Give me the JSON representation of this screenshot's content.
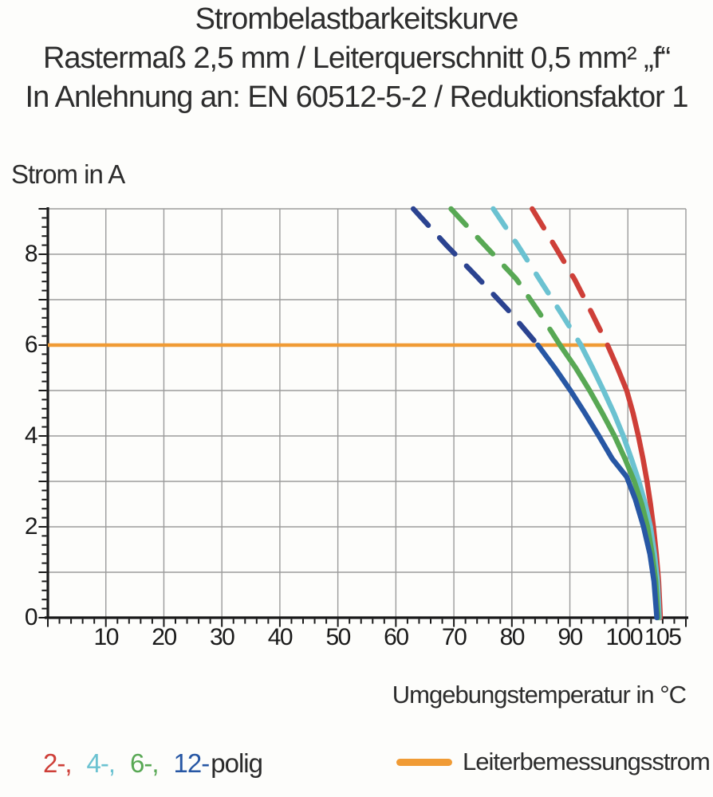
{
  "title": {
    "line1": "Strombelastbarkeitskurve",
    "line2": "Rastermaß 2,5 mm / Leiterquerschnitt 0,5 mm² „f“",
    "line3": "In Anlehnung an: EN 60512-5-2 / Reduktionsfaktor 1"
  },
  "axis_labels": {
    "y": "Strom in A",
    "x": "Umgebungstemperatur in °C"
  },
  "legend": {
    "pole_items": [
      {
        "name": "2-polig",
        "label": "2-,",
        "color": "#CE3F38"
      },
      {
        "name": "4-polig",
        "label": "4-,",
        "color": "#6BC2D1"
      },
      {
        "name": "6-polig",
        "label": "6-,",
        "color": "#58A854"
      },
      {
        "name": "12-polig",
        "label": "12-",
        "color": "#2757A4"
      }
    ],
    "pole_suffix": "polig",
    "rated_current": {
      "label": "Leiterbemessungsstrom",
      "color": "#F09B35"
    }
  },
  "chart_data": {
    "type": "line",
    "title": "Strombelastbarkeitskurve",
    "subtitle": "Rastermaß 2,5 mm / Leiterquerschnitt 0,5 mm² „f“ / In Anlehnung an: EN 60512-5-2 / Reduktionsfaktor 1",
    "xlabel": "Umgebungstemperatur in °C",
    "ylabel": "Strom in A",
    "xlim": [
      0,
      110
    ],
    "ylim": [
      0,
      9
    ],
    "x_tick_labels": [
      10,
      20,
      30,
      40,
      50,
      60,
      70,
      80,
      90,
      100,
      105
    ],
    "y_tick_labels": [
      0,
      2,
      4,
      6,
      8
    ],
    "x_gridline_step": 10,
    "y_gridline_step": 1,
    "x_minor_tick_step": 2,
    "y_minor_tick_step": 0.2,
    "grid_on": true,
    "grid_color": "#9B9B9B",
    "axis_color": "#1A1A1A",
    "reference_line": {
      "name": "Leiterbemessungsstrom",
      "y": 6,
      "x_start": 0,
      "x_end": 96.5,
      "color": "#F09B35"
    },
    "series": [
      {
        "name": "2-polig",
        "color": "#CE3F38",
        "style_above_6A": "dashed",
        "dashed_points": [
          [
            83.5,
            9
          ],
          [
            87.3,
            8.2
          ],
          [
            90.8,
            7.45
          ],
          [
            93.8,
            6.7
          ],
          [
            96.5,
            6
          ]
        ],
        "solid_points": [
          [
            96.5,
            6
          ],
          [
            98.2,
            5.5
          ],
          [
            99.8,
            5
          ],
          [
            100.9,
            4.5
          ],
          [
            101.8,
            4
          ],
          [
            102.6,
            3.5
          ],
          [
            103.3,
            3
          ],
          [
            103.9,
            2.5
          ],
          [
            104.4,
            2
          ],
          [
            104.9,
            1.4
          ],
          [
            105.3,
            0.8
          ],
          [
            105.6,
            0
          ]
        ]
      },
      {
        "name": "4-polig",
        "color": "#6BC2D1",
        "style_above_6A": "dashed",
        "dashed_points": [
          [
            76.8,
            9
          ],
          [
            81,
            8.2
          ],
          [
            85,
            7.4
          ],
          [
            88.6,
            6.68
          ],
          [
            91.9,
            6
          ]
        ],
        "solid_points": [
          [
            91.9,
            6
          ],
          [
            93.9,
            5.5
          ],
          [
            95.8,
            5
          ],
          [
            97.6,
            4.5
          ],
          [
            99.2,
            4
          ],
          [
            100.6,
            3.5
          ],
          [
            101.9,
            3
          ],
          [
            103,
            2.5
          ],
          [
            103.9,
            2
          ],
          [
            104.6,
            1.4
          ],
          [
            105.1,
            0.8
          ],
          [
            105.4,
            0
          ]
        ]
      },
      {
        "name": "6-polig",
        "color": "#58A854",
        "style_above_6A": "dashed",
        "dashed_points": [
          [
            69.5,
            9
          ],
          [
            75.3,
            8.2
          ],
          [
            80.8,
            7.45
          ],
          [
            84.8,
            6.7
          ],
          [
            88.3,
            6
          ]
        ],
        "solid_points": [
          [
            88.3,
            6
          ],
          [
            91,
            5.5
          ],
          [
            93.4,
            5
          ],
          [
            95.6,
            4.5
          ],
          [
            97.7,
            4
          ],
          [
            99.5,
            3.5
          ],
          [
            101.1,
            3
          ],
          [
            102.4,
            2.5
          ],
          [
            103.4,
            2
          ],
          [
            104.2,
            1.4
          ],
          [
            104.8,
            0.8
          ],
          [
            105.2,
            0
          ]
        ]
      },
      {
        "name": "12-polig",
        "color": "#2757A4",
        "dash_color": "#2B4390",
        "style_above_6A": "dashed",
        "dashed_points": [
          [
            63,
            9
          ],
          [
            68.7,
            8.2
          ],
          [
            74,
            7.5
          ],
          [
            79.5,
            6.75
          ],
          [
            84.5,
            6
          ]
        ],
        "solid_points": [
          [
            84.5,
            6
          ],
          [
            87.4,
            5.5
          ],
          [
            90.1,
            5
          ],
          [
            92.6,
            4.5
          ],
          [
            95,
            4
          ],
          [
            97.3,
            3.5
          ],
          [
            99.8,
            3.1
          ],
          [
            101.3,
            2.6
          ],
          [
            102.7,
            2
          ],
          [
            103.8,
            1.4
          ],
          [
            104.5,
            0.8
          ],
          [
            105,
            0
          ]
        ]
      }
    ]
  }
}
